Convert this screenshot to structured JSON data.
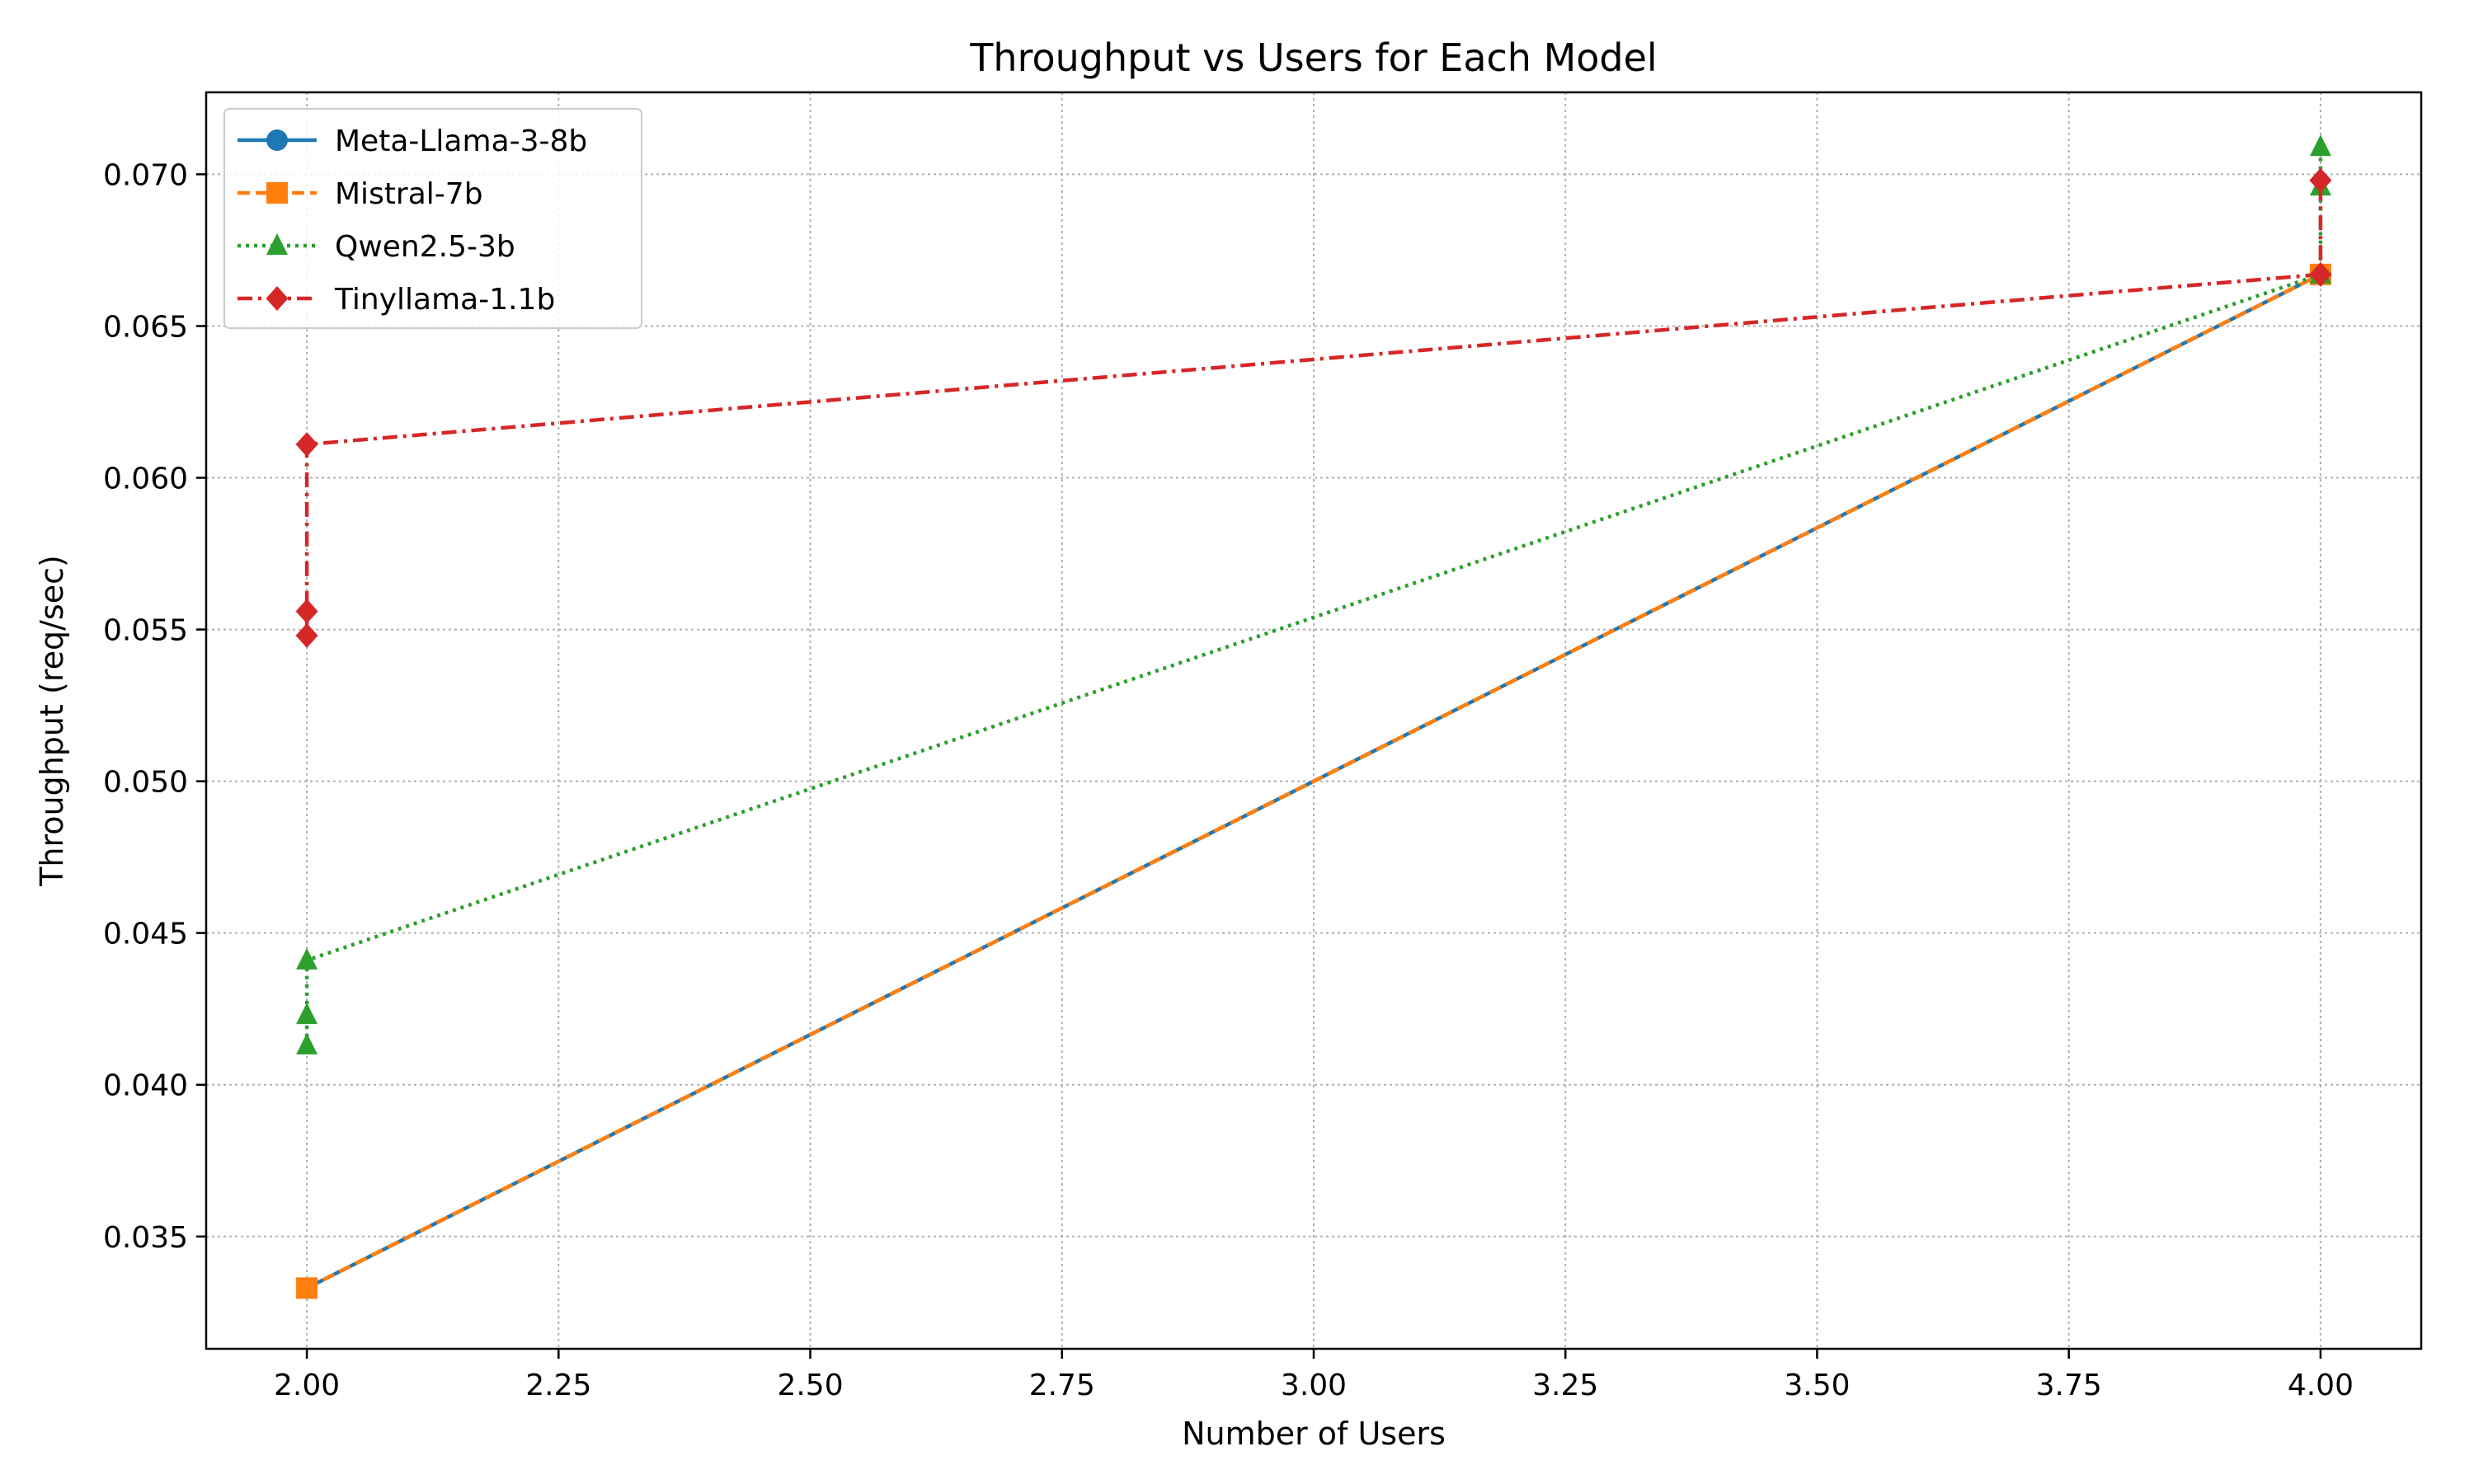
{
  "chart_data": {
    "type": "line",
    "title": "Throughput vs Users for Each Model",
    "xlabel": "Number of Users",
    "ylabel": "Throughput (req/sec)",
    "xlim": [
      1.9,
      4.1
    ],
    "ylim": [
      0.0313,
      0.0727
    ],
    "grid": true,
    "legend_position": "top-left",
    "x_ticks": [
      {
        "value": 2.0,
        "label": "2.00"
      },
      {
        "value": 2.25,
        "label": "2.25"
      },
      {
        "value": 2.5,
        "label": "2.50"
      },
      {
        "value": 2.75,
        "label": "2.75"
      },
      {
        "value": 3.0,
        "label": "3.00"
      },
      {
        "value": 3.25,
        "label": "3.25"
      },
      {
        "value": 3.5,
        "label": "3.50"
      },
      {
        "value": 3.75,
        "label": "3.75"
      },
      {
        "value": 4.0,
        "label": "4.00"
      }
    ],
    "y_ticks": [
      {
        "value": 0.035,
        "label": "0.035"
      },
      {
        "value": 0.04,
        "label": "0.040"
      },
      {
        "value": 0.045,
        "label": "0.045"
      },
      {
        "value": 0.05,
        "label": "0.050"
      },
      {
        "value": 0.055,
        "label": "0.055"
      },
      {
        "value": 0.06,
        "label": "0.060"
      },
      {
        "value": 0.065,
        "label": "0.065"
      },
      {
        "value": 0.07,
        "label": "0.070"
      }
    ],
    "series": [
      {
        "name": "Meta-Llama-3-8b",
        "color": "#1f77b4",
        "marker": "circle",
        "line_style": "solid",
        "points": [
          {
            "x": 2.0,
            "y": 0.0333
          },
          {
            "x": 4.0,
            "y": 0.0667
          }
        ]
      },
      {
        "name": "Mistral-7b",
        "color": "#ff7f0e",
        "marker": "square",
        "line_style": "dashed",
        "points": [
          {
            "x": 2.0,
            "y": 0.0333
          },
          {
            "x": 4.0,
            "y": 0.0667
          }
        ]
      },
      {
        "name": "Qwen2.5-3b",
        "color": "#2ca02c",
        "marker": "triangle",
        "line_style": "dotted",
        "points": [
          {
            "x": 2.0,
            "y": 0.0413
          },
          {
            "x": 2.0,
            "y": 0.0423
          },
          {
            "x": 2.0,
            "y": 0.0441
          },
          {
            "x": 4.0,
            "y": 0.0667
          },
          {
            "x": 4.0,
            "y": 0.0696
          },
          {
            "x": 4.0,
            "y": 0.0709
          }
        ]
      },
      {
        "name": "Tinyllama-1.1b",
        "color": "#d62728",
        "marker": "diamond",
        "line_style": "dashdot",
        "points": [
          {
            "x": 2.0,
            "y": 0.0548
          },
          {
            "x": 2.0,
            "y": 0.0556
          },
          {
            "x": 2.0,
            "y": 0.0611
          },
          {
            "x": 4.0,
            "y": 0.0667
          },
          {
            "x": 4.0,
            "y": 0.0698
          }
        ]
      }
    ]
  }
}
